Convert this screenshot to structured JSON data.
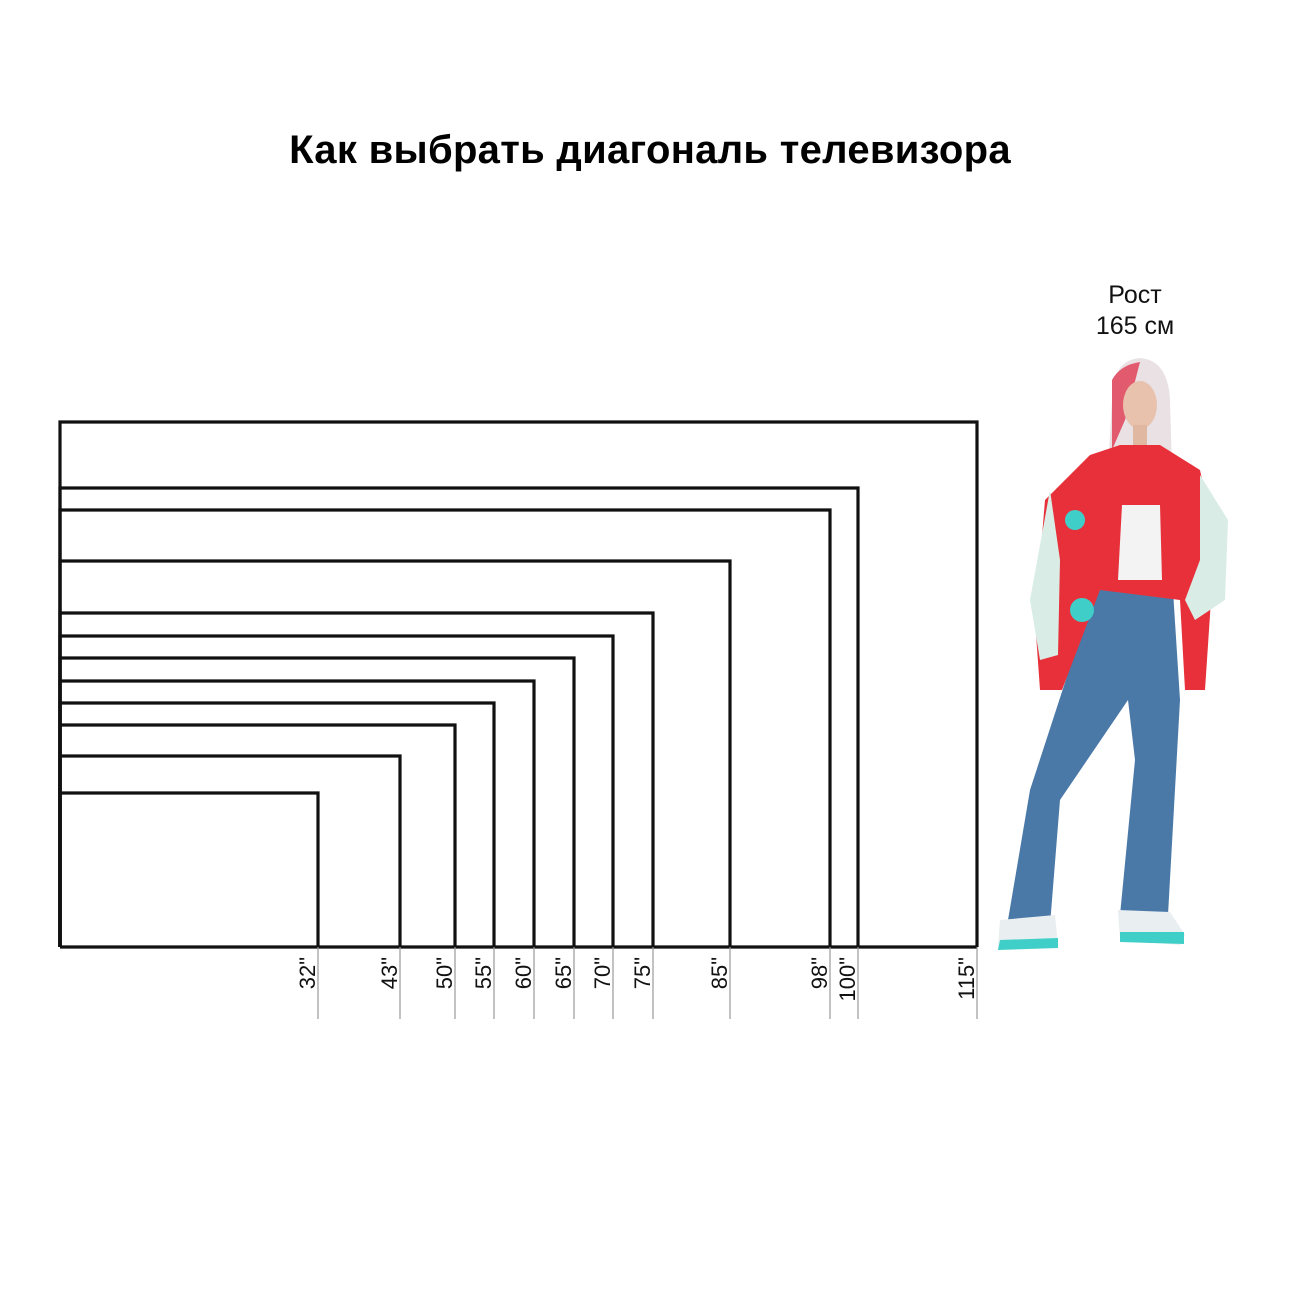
{
  "title": "Как выбрать диагональ телевизора",
  "person": {
    "label_line1": "Рост",
    "label_line2": "165 см"
  },
  "colors": {
    "lines": "#111111",
    "ticks": "#9a9a9a",
    "jacket": "#e8303a",
    "jeans": "#4a79a8",
    "accent": "#3fcfc8"
  },
  "chart_data": {
    "type": "diagram",
    "unit": "\"",
    "sizes": [
      32,
      43,
      50,
      55,
      60,
      65,
      70,
      75,
      85,
      98,
      100,
      115
    ],
    "labels": [
      "32\"",
      "43\"",
      "50\"",
      "55\"",
      "60\"",
      "65\"",
      "70\"",
      "75\"",
      "85\"",
      "98\"",
      "100\"",
      "115\""
    ],
    "aspect": "16:9"
  }
}
